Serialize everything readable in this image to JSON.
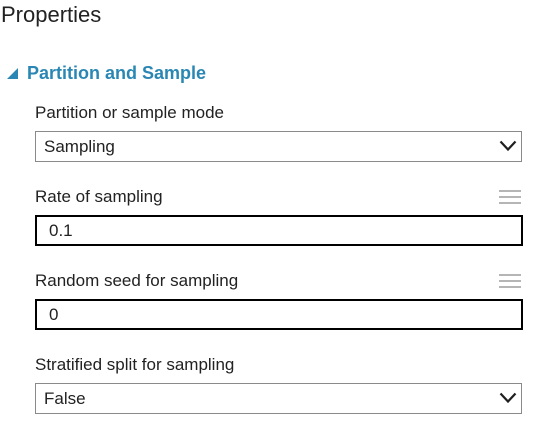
{
  "panel": {
    "title": "Properties"
  },
  "section": {
    "label": "Partition and Sample",
    "icon": "triangle-collapse-icon",
    "accent_color": "#2a87b3"
  },
  "fields": {
    "mode": {
      "label": "Partition or sample mode",
      "value": "Sampling"
    },
    "rate": {
      "label": "Rate of sampling",
      "value": "0.1"
    },
    "seed": {
      "label": "Random seed for sampling",
      "value": "0"
    },
    "stratified": {
      "label": "Stratified split for sampling",
      "value": "False"
    }
  }
}
